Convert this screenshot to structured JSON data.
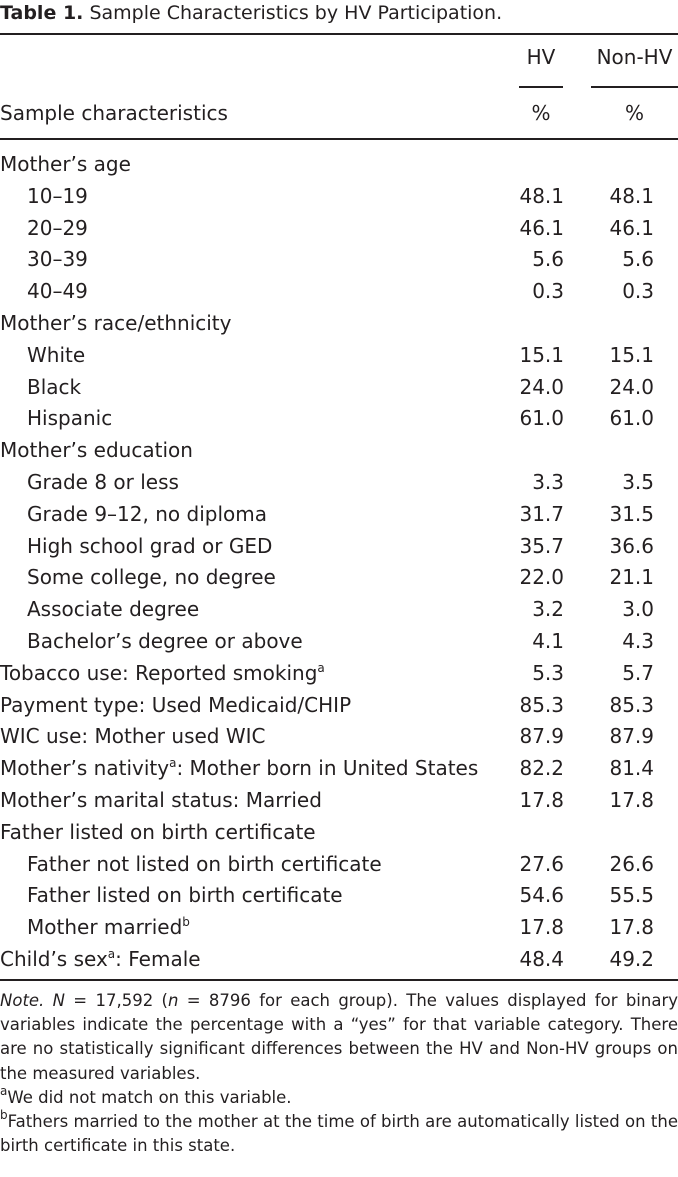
{
  "caption": {
    "label": "Table 1.",
    "title": "Sample Characteristics by HV Participation."
  },
  "columns": {
    "stub_header": "Sample characteristics",
    "hv": "HV",
    "nonhv": "Non-HV",
    "unit": "%"
  },
  "rows": [
    {
      "label": "Mother’s age",
      "indent": false,
      "hv": "",
      "nonhv": ""
    },
    {
      "label": "10–19",
      "indent": true,
      "hv": "48.1",
      "nonhv": "48.1"
    },
    {
      "label": "20–29",
      "indent": true,
      "hv": "46.1",
      "nonhv": "46.1"
    },
    {
      "label": "30–39",
      "indent": true,
      "hv": "5.6",
      "nonhv": "5.6"
    },
    {
      "label": "40–49",
      "indent": true,
      "hv": "0.3",
      "nonhv": "0.3"
    },
    {
      "label": "Mother’s race/ethnicity",
      "indent": false,
      "hv": "",
      "nonhv": ""
    },
    {
      "label": "White",
      "indent": true,
      "hv": "15.1",
      "nonhv": "15.1"
    },
    {
      "label": "Black",
      "indent": true,
      "hv": "24.0",
      "nonhv": "24.0"
    },
    {
      "label": "Hispanic",
      "indent": true,
      "hv": "61.0",
      "nonhv": "61.0"
    },
    {
      "label": "Mother’s education",
      "indent": false,
      "hv": "",
      "nonhv": ""
    },
    {
      "label": "Grade 8 or less",
      "indent": true,
      "hv": "3.3",
      "nonhv": "3.5"
    },
    {
      "label": "Grade 9–12, no diploma",
      "indent": true,
      "hv": "31.7",
      "nonhv": "31.5"
    },
    {
      "label": "High school grad or GED",
      "indent": true,
      "hv": "35.7",
      "nonhv": "36.6"
    },
    {
      "label": "Some college, no degree",
      "indent": true,
      "hv": "22.0",
      "nonhv": "21.1"
    },
    {
      "label": "Associate degree",
      "indent": true,
      "hv": "3.2",
      "nonhv": "3.0"
    },
    {
      "label": "Bachelor’s degree or above",
      "indent": true,
      "hv": "4.1",
      "nonhv": "4.3"
    },
    {
      "label": "Tobacco use: Reported smoking",
      "sup": "a",
      "indent": false,
      "hv": "5.3",
      "nonhv": "5.7"
    },
    {
      "label": "Payment type: Used Medicaid/CHIP",
      "indent": false,
      "hv": "85.3",
      "nonhv": "85.3"
    },
    {
      "label": "WIC use: Mother used WIC",
      "indent": false,
      "hv": "87.9",
      "nonhv": "87.9"
    },
    {
      "label": "Mother’s nativity",
      "sup": "a",
      "suffix": ": Mother born in United States",
      "indent": false,
      "hv": "82.2",
      "nonhv": "81.4"
    },
    {
      "label": "Mother’s marital status: Married",
      "indent": false,
      "hv": "17.8",
      "nonhv": "17.8"
    },
    {
      "label": "Father listed on birth certificate",
      "indent": false,
      "hv": "",
      "nonhv": ""
    },
    {
      "label": "Father not listed on birth certificate",
      "indent": true,
      "hv": "27.6",
      "nonhv": "26.6"
    },
    {
      "label": "Father listed on birth certificate",
      "indent": true,
      "hv": "54.6",
      "nonhv": "55.5"
    },
    {
      "label": "Mother married",
      "sup": "b",
      "indent": true,
      "hv": "17.8",
      "nonhv": "17.8"
    },
    {
      "label": "Child’s sex",
      "sup": "a",
      "suffix": ": Female",
      "indent": false,
      "hv": "48.4",
      "nonhv": "49.2"
    }
  ],
  "notes": {
    "note_label": "Note.",
    "n_label": "N",
    "n_value": " = 17,592 (",
    "n_small": "n",
    "n_rest": " = 8796 for each group). The values displayed for binary variables indicate the percentage with a “yes” for that variable category. There are no statistically significant differences between the HV and Non-HV groups on the measured variables.",
    "footnote_a_mark": "a",
    "footnote_a": "We did not match on this variable.",
    "footnote_b_mark": "b",
    "footnote_b": "Fathers married to the mother at the time of birth are automatically listed on the birth certificate in this state."
  }
}
